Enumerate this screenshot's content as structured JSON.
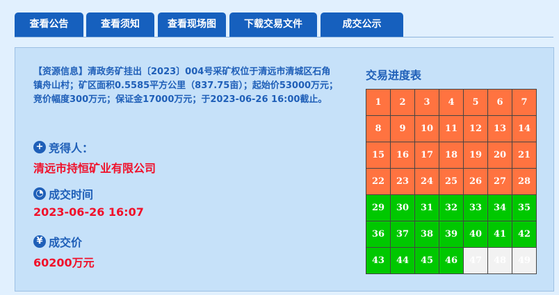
{
  "tabs": [
    {
      "label": "查看公告"
    },
    {
      "label": "查看须知"
    },
    {
      "label": "查看现场图"
    },
    {
      "label": "下载交易文件"
    },
    {
      "label": "成交公示"
    }
  ],
  "info": "【资源信息】清政务矿挂出〔2023〕004号采矿权位于清远市清城区石角镇舟山村；矿区面积0.5585平方公里（837.75亩）；起始价53000万元；竞价幅度300万元；保证金17000万元；于2023-06-26 16:00截止。",
  "winner": {
    "label": "竞得人：",
    "value": "清远市持恒矿业有限公司",
    "icon": "plus-circle-icon"
  },
  "time": {
    "label": "成交时间",
    "value": "2023-06-26 16:07",
    "icon": "clock-icon"
  },
  "price": {
    "label": "成交价",
    "value": "60200万元",
    "icon": "yuan-icon"
  },
  "progress": {
    "title": "交易进度表",
    "total": 49,
    "orange_through": 28,
    "green_through": 46,
    "colors": {
      "orange": "#ff7340",
      "green": "#00c800",
      "empty": "#f2f2f2"
    }
  }
}
